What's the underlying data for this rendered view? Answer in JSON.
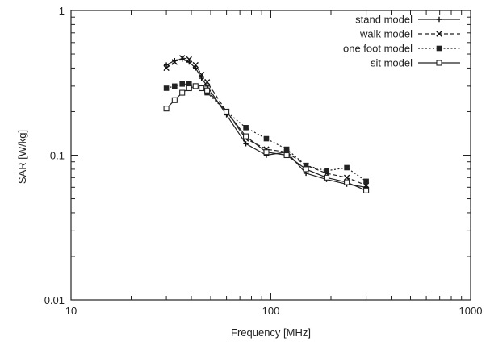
{
  "chart_data": {
    "type": "line",
    "xlabel": "Frequency [MHz]",
    "ylabel": "SAR [W/kg]",
    "xscale": "log",
    "yscale": "log",
    "xlim": [
      10,
      1000
    ],
    "ylim": [
      0.01,
      1
    ],
    "x_ticks": [
      {
        "value": 10,
        "label": "10"
      },
      {
        "value": 100,
        "label": "100"
      },
      {
        "value": 1000,
        "label": "1000"
      }
    ],
    "y_ticks": [
      {
        "value": 0.01,
        "label": "0.01"
      },
      {
        "value": 0.1,
        "label": "0.1"
      },
      {
        "value": 1,
        "label": "1"
      }
    ],
    "grid": false,
    "legend_position": "top-right",
    "series": [
      {
        "name": "stand model",
        "marker": "plus",
        "dash": "solid",
        "points": [
          [
            30,
            0.42
          ],
          [
            33,
            0.45
          ],
          [
            36,
            0.46
          ],
          [
            39,
            0.44
          ],
          [
            42,
            0.4
          ],
          [
            45,
            0.34
          ],
          [
            48,
            0.3
          ],
          [
            60,
            0.19
          ],
          [
            75,
            0.12
          ],
          [
            95,
            0.1
          ],
          [
            120,
            0.105
          ],
          [
            150,
            0.075
          ],
          [
            190,
            0.068
          ],
          [
            240,
            0.063
          ],
          [
            300,
            0.06
          ]
        ]
      },
      {
        "name": "walk model",
        "marker": "cross",
        "dash": "dashed",
        "points": [
          [
            30,
            0.4
          ],
          [
            33,
            0.44
          ],
          [
            36,
            0.47
          ],
          [
            39,
            0.46
          ],
          [
            42,
            0.42
          ],
          [
            45,
            0.36
          ],
          [
            48,
            0.32
          ],
          [
            60,
            0.2
          ],
          [
            75,
            0.13
          ],
          [
            95,
            0.11
          ],
          [
            120,
            0.105
          ],
          [
            150,
            0.085
          ],
          [
            190,
            0.075
          ],
          [
            240,
            0.07
          ],
          [
            300,
            0.062
          ]
        ]
      },
      {
        "name": "one foot model",
        "marker": "filled-square",
        "dash": "dotted",
        "points": [
          [
            30,
            0.29
          ],
          [
            33,
            0.3
          ],
          [
            36,
            0.31
          ],
          [
            39,
            0.31
          ],
          [
            42,
            0.3
          ],
          [
            45,
            0.29
          ],
          [
            48,
            0.27
          ],
          [
            60,
            0.2
          ],
          [
            75,
            0.155
          ],
          [
            95,
            0.13
          ],
          [
            120,
            0.11
          ],
          [
            150,
            0.085
          ],
          [
            190,
            0.078
          ],
          [
            240,
            0.082
          ],
          [
            300,
            0.066
          ]
        ]
      },
      {
        "name": "sit model",
        "marker": "open-square",
        "dash": "solid",
        "points": [
          [
            30,
            0.21
          ],
          [
            33,
            0.24
          ],
          [
            36,
            0.27
          ],
          [
            39,
            0.29
          ],
          [
            42,
            0.3
          ],
          [
            45,
            0.29
          ],
          [
            48,
            0.28
          ],
          [
            60,
            0.2
          ],
          [
            75,
            0.135
          ],
          [
            95,
            0.105
          ],
          [
            120,
            0.1
          ],
          [
            150,
            0.08
          ],
          [
            190,
            0.07
          ],
          [
            240,
            0.065
          ],
          [
            300,
            0.057
          ]
        ]
      }
    ]
  }
}
